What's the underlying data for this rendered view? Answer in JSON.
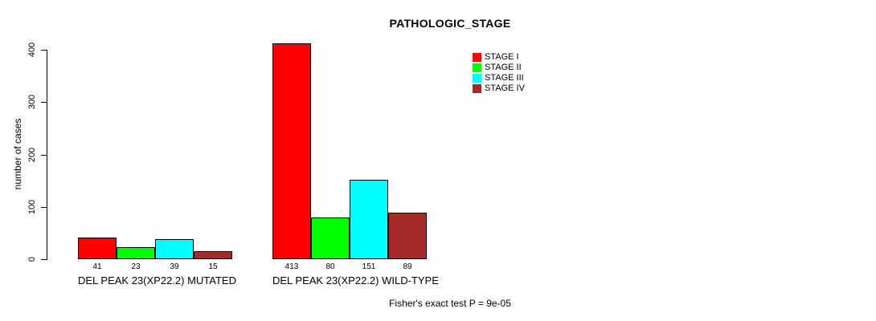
{
  "chart_data": {
    "type": "bar",
    "title": "PATHOLOGIC_STAGE",
    "xlabel": "",
    "ylabel": "number of cases",
    "ylim": [
      0,
      400
    ],
    "yticks": [
      0,
      100,
      200,
      300,
      400
    ],
    "grid": false,
    "legend_position": "top-right",
    "value_labels": true,
    "categories": [
      "DEL PEAK 23(XP22.2) MUTATED",
      "DEL PEAK 23(XP22.2) WILD-TYPE"
    ],
    "series": [
      {
        "name": "STAGE I",
        "color": "#ff0000",
        "values": [
          41,
          413
        ]
      },
      {
        "name": "STAGE II",
        "color": "#00ff00",
        "values": [
          23,
          80
        ]
      },
      {
        "name": "STAGE III",
        "color": "#00ffff",
        "values": [
          39,
          151
        ]
      },
      {
        "name": "STAGE IV",
        "color": "#a52a2a",
        "values": [
          15,
          89
        ]
      }
    ],
    "annotation": "Fisher's exact test P = 9e-05"
  }
}
